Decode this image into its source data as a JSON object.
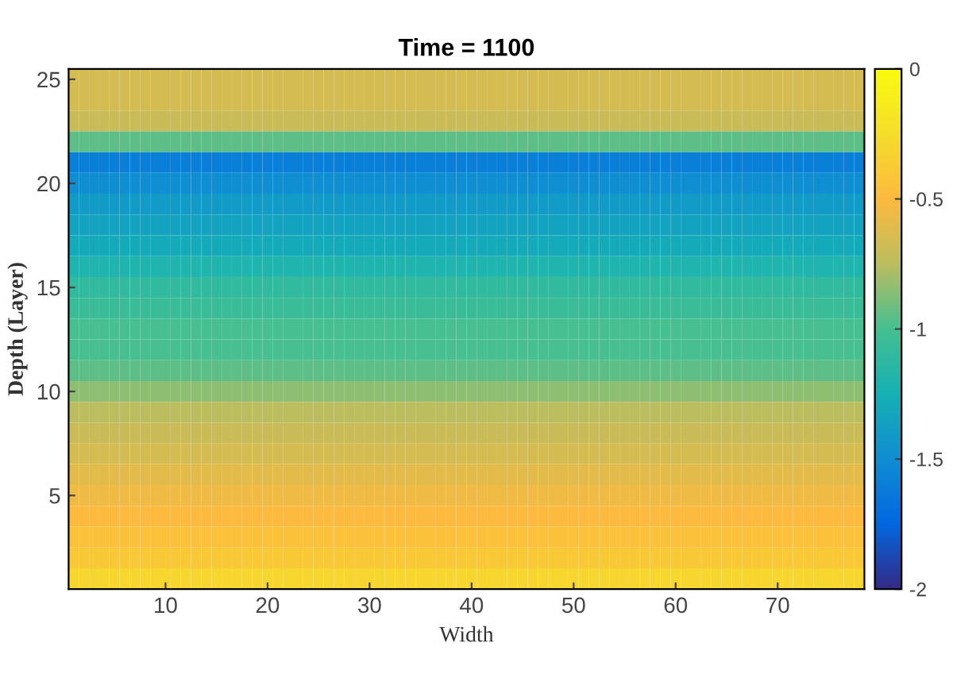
{
  "chart_data": {
    "type": "heatmap",
    "title": "Time = 1100",
    "xlabel": "Width",
    "ylabel": "Depth (Layer)",
    "categories": [
      null,
      null,
      null,
      null,
      null,
      null,
      null,
      null,
      null,
      "10",
      null,
      null,
      null,
      null,
      null,
      null,
      null,
      null,
      null,
      "20",
      null,
      null,
      null,
      null,
      null,
      null,
      null,
      null,
      null,
      "30",
      null,
      null,
      null,
      null,
      null,
      null,
      null,
      null,
      null,
      "40",
      null,
      null,
      null,
      null,
      null,
      null,
      null,
      null,
      null,
      "50",
      null,
      null,
      null,
      null,
      null,
      null,
      null,
      null,
      null,
      "60",
      null,
      null,
      null,
      null,
      null,
      null,
      null,
      null,
      null,
      "70",
      null,
      null,
      null,
      null,
      null,
      null,
      null,
      null
    ],
    "y_categories": [
      "25",
      null,
      null,
      null,
      null,
      "20",
      null,
      null,
      null,
      null,
      "15",
      null,
      null,
      null,
      null,
      "10",
      null,
      null,
      null,
      null,
      "5",
      null,
      null,
      null,
      null
    ],
    "clim": [
      -2,
      0
    ],
    "cticks": [
      -2,
      -1.5,
      -1,
      -0.5,
      0
    ],
    "cells": [
      [
        -0.65,
        -0.65,
        -0.65,
        -0.65,
        -0.65,
        -0.65,
        -0.65,
        -0.65,
        -0.65,
        -0.65,
        -0.65,
        -0.65,
        -0.65,
        -0.65,
        -0.65,
        -0.65,
        -0.65,
        -0.65,
        -0.65,
        -0.65,
        -0.65,
        -0.65,
        -0.65,
        -0.65,
        -0.65,
        -0.65,
        -0.65,
        -0.65,
        -0.65,
        -0.65,
        -0.65,
        -0.65,
        -0.65,
        -0.65,
        -0.65,
        -0.65,
        -0.65,
        -0.65,
        -0.65,
        -0.65,
        -0.65,
        -0.65,
        -0.65,
        -0.65,
        -0.65,
        -0.65,
        -0.65,
        -0.65,
        -0.65,
        -0.65,
        -0.65,
        -0.65,
        -0.65,
        -0.65,
        -0.65,
        -0.65,
        -0.65,
        -0.65,
        -0.65,
        -0.65,
        -0.65,
        -0.65,
        -0.65,
        -0.65,
        -0.65,
        -0.65,
        -0.65,
        -0.65,
        -0.65,
        -0.65,
        -0.65,
        -0.65,
        -0.65,
        -0.65,
        -0.65,
        -0.65,
        -0.65,
        -0.65
      ],
      [
        -0.65,
        -0.65,
        -0.65,
        -0.65,
        -0.65,
        -0.65,
        -0.65,
        -0.65,
        -0.65,
        -0.65,
        -0.65,
        -0.65,
        -0.65,
        -0.65,
        -0.65,
        -0.65,
        -0.65,
        -0.65,
        -0.65,
        -0.65,
        -0.65,
        -0.65,
        -0.65,
        -0.65,
        -0.65,
        -0.65,
        -0.65,
        -0.65,
        -0.65,
        -0.65,
        -0.65,
        -0.65,
        -0.65,
        -0.65,
        -0.65,
        -0.65,
        -0.65,
        -0.65,
        -0.65,
        -0.65,
        -0.65,
        -0.65,
        -0.65,
        -0.65,
        -0.65,
        -0.65,
        -0.65,
        -0.65,
        -0.65,
        -0.65,
        -0.65,
        -0.65,
        -0.65,
        -0.65,
        -0.65,
        -0.65,
        -0.65,
        -0.65,
        -0.65,
        -0.65,
        -0.65,
        -0.65,
        -0.65,
        -0.65,
        -0.65,
        -0.65,
        -0.65,
        -0.65,
        -0.65,
        -0.65,
        -0.65,
        -0.65,
        -0.65,
        -0.65,
        -0.65,
        -0.65,
        -0.65,
        -0.65
      ],
      [
        -0.7,
        -0.7,
        -0.7,
        -0.7,
        -0.7,
        -0.7,
        -0.7,
        -0.7,
        -0.7,
        -0.7,
        -0.7,
        -0.7,
        -0.7,
        -0.7,
        -0.7,
        -0.7,
        -0.7,
        -0.7,
        -0.7,
        -0.7,
        -0.7,
        -0.7,
        -0.7,
        -0.7,
        -0.7,
        -0.7,
        -0.7,
        -0.7,
        -0.7,
        -0.7,
        -0.7,
        -0.7,
        -0.7,
        -0.7,
        -0.7,
        -0.7,
        -0.7,
        -0.7,
        -0.7,
        -0.7,
        -0.7,
        -0.7,
        -0.7,
        -0.7,
        -0.7,
        -0.7,
        -0.7,
        -0.7,
        -0.7,
        -0.7,
        -0.7,
        -0.7,
        -0.7,
        -0.7,
        -0.7,
        -0.7,
        -0.7,
        -0.7,
        -0.7,
        -0.7,
        -0.7,
        -0.7,
        -0.7,
        -0.7,
        -0.7,
        -0.7,
        -0.7,
        -0.7,
        -0.7,
        -0.7,
        -0.7,
        -0.7,
        -0.7,
        -0.7,
        -0.7,
        -0.7,
        -0.7,
        -0.7
      ],
      [
        -0.95,
        -0.95,
        -0.95,
        -0.95,
        -0.95,
        -0.95,
        -0.95,
        -0.95,
        -0.95,
        -0.95,
        -0.95,
        -0.95,
        -0.95,
        -0.95,
        -0.95,
        -0.95,
        -0.95,
        -0.95,
        -0.95,
        -0.95,
        -0.95,
        -0.95,
        -0.95,
        -0.95,
        -0.95,
        -0.95,
        -0.95,
        -0.95,
        -0.95,
        -0.95,
        -0.95,
        -0.95,
        -0.95,
        -0.95,
        -0.95,
        -0.95,
        -0.95,
        -0.95,
        -0.95,
        -0.95,
        -0.95,
        -0.95,
        -0.95,
        -0.95,
        -0.95,
        -0.95,
        -0.95,
        -0.95,
        -0.95,
        -0.95,
        -0.95,
        -0.95,
        -0.95,
        -0.95,
        -0.95,
        -0.95,
        -0.95,
        -0.95,
        -0.95,
        -0.95,
        -0.95,
        -0.95,
        -0.95,
        -0.95,
        -0.95,
        -0.95,
        -0.95,
        -0.95,
        -0.95,
        -0.95,
        -0.95,
        -0.95,
        -0.95,
        -0.95,
        -0.95,
        -0.95,
        -0.95,
        -0.95
      ],
      [
        -1.6,
        -1.6,
        -1.6,
        -1.6,
        -1.6,
        -1.6,
        -1.6,
        -1.6,
        -1.6,
        -1.6,
        -1.6,
        -1.6,
        -1.6,
        -1.6,
        -1.6,
        -1.6,
        -1.6,
        -1.6,
        -1.6,
        -1.6,
        -1.6,
        -1.6,
        -1.6,
        -1.6,
        -1.6,
        -1.6,
        -1.6,
        -1.6,
        -1.6,
        -1.6,
        -1.6,
        -1.6,
        -1.6,
        -1.6,
        -1.6,
        -1.6,
        -1.6,
        -1.6,
        -1.6,
        -1.6,
        -1.6,
        -1.6,
        -1.6,
        -1.6,
        -1.6,
        -1.6,
        -1.6,
        -1.6,
        -1.6,
        -1.6,
        -1.6,
        -1.6,
        -1.6,
        -1.6,
        -1.6,
        -1.6,
        -1.6,
        -1.6,
        -1.6,
        -1.6,
        -1.6,
        -1.6,
        -1.6,
        -1.6,
        -1.6,
        -1.6,
        -1.6,
        -1.6,
        -1.6,
        -1.6,
        -1.6,
        -1.6,
        -1.6,
        -1.6,
        -1.6,
        -1.6,
        -1.6,
        -1.6
      ],
      [
        -1.5,
        -1.5,
        -1.5,
        -1.5,
        -1.5,
        -1.5,
        -1.5,
        -1.5,
        -1.5,
        -1.5,
        -1.5,
        -1.5,
        -1.5,
        -1.5,
        -1.5,
        -1.5,
        -1.5,
        -1.5,
        -1.5,
        -1.5,
        -1.5,
        -1.5,
        -1.5,
        -1.5,
        -1.5,
        -1.5,
        -1.5,
        -1.5,
        -1.5,
        -1.5,
        -1.5,
        -1.5,
        -1.5,
        -1.5,
        -1.5,
        -1.5,
        -1.5,
        -1.5,
        -1.5,
        -1.5,
        -1.5,
        -1.5,
        -1.5,
        -1.5,
        -1.5,
        -1.5,
        -1.5,
        -1.5,
        -1.5,
        -1.5,
        -1.5,
        -1.5,
        -1.5,
        -1.5,
        -1.5,
        -1.5,
        -1.5,
        -1.5,
        -1.5,
        -1.5,
        -1.5,
        -1.5,
        -1.5,
        -1.5,
        -1.5,
        -1.5,
        -1.5,
        -1.5,
        -1.5,
        -1.5,
        -1.5,
        -1.5,
        -1.5,
        -1.5,
        -1.5,
        -1.5,
        -1.5,
        -1.5
      ],
      [
        -1.4,
        -1.4,
        -1.4,
        -1.4,
        -1.4,
        -1.4,
        -1.4,
        -1.4,
        -1.4,
        -1.4,
        -1.4,
        -1.4,
        -1.4,
        -1.4,
        -1.4,
        -1.4,
        -1.4,
        -1.4,
        -1.4,
        -1.4,
        -1.4,
        -1.4,
        -1.4,
        -1.4,
        -1.4,
        -1.4,
        -1.4,
        -1.4,
        -1.4,
        -1.4,
        -1.4,
        -1.4,
        -1.4,
        -1.4,
        -1.4,
        -1.4,
        -1.4,
        -1.4,
        -1.4,
        -1.4,
        -1.4,
        -1.4,
        -1.4,
        -1.4,
        -1.4,
        -1.4,
        -1.4,
        -1.4,
        -1.4,
        -1.4,
        -1.4,
        -1.4,
        -1.4,
        -1.4,
        -1.4,
        -1.4,
        -1.4,
        -1.4,
        -1.4,
        -1.4,
        -1.4,
        -1.4,
        -1.4,
        -1.4,
        -1.4,
        -1.4,
        -1.4,
        -1.4,
        -1.4,
        -1.4,
        -1.4,
        -1.4,
        -1.4,
        -1.4,
        -1.4,
        -1.4,
        -1.4,
        -1.4
      ],
      [
        -1.35,
        -1.35,
        -1.35,
        -1.35,
        -1.35,
        -1.35,
        -1.35,
        -1.35,
        -1.35,
        -1.35,
        -1.35,
        -1.35,
        -1.35,
        -1.35,
        -1.35,
        -1.35,
        -1.35,
        -1.35,
        -1.35,
        -1.35,
        -1.35,
        -1.35,
        -1.35,
        -1.35,
        -1.35,
        -1.35,
        -1.35,
        -1.35,
        -1.35,
        -1.35,
        -1.35,
        -1.35,
        -1.35,
        -1.35,
        -1.35,
        -1.35,
        -1.35,
        -1.35,
        -1.35,
        -1.35,
        -1.35,
        -1.35,
        -1.35,
        -1.35,
        -1.35,
        -1.35,
        -1.35,
        -1.35,
        -1.35,
        -1.35,
        -1.35,
        -1.35,
        -1.35,
        -1.35,
        -1.35,
        -1.35,
        -1.35,
        -1.35,
        -1.35,
        -1.35,
        -1.35,
        -1.35,
        -1.35,
        -1.35,
        -1.35,
        -1.35,
        -1.35,
        -1.35,
        -1.35,
        -1.35,
        -1.35,
        -1.35,
        -1.35,
        -1.35,
        -1.35,
        -1.35,
        -1.35,
        -1.35
      ],
      [
        -1.3,
        -1.3,
        -1.3,
        -1.3,
        -1.3,
        -1.3,
        -1.3,
        -1.3,
        -1.3,
        -1.3,
        -1.3,
        -1.3,
        -1.3,
        -1.3,
        -1.3,
        -1.3,
        -1.3,
        -1.3,
        -1.3,
        -1.3,
        -1.3,
        -1.3,
        -1.3,
        -1.3,
        -1.3,
        -1.3,
        -1.3,
        -1.3,
        -1.3,
        -1.3,
        -1.3,
        -1.3,
        -1.3,
        -1.3,
        -1.3,
        -1.3,
        -1.3,
        -1.3,
        -1.3,
        -1.3,
        -1.3,
        -1.3,
        -1.3,
        -1.3,
        -1.3,
        -1.3,
        -1.3,
        -1.3,
        -1.3,
        -1.3,
        -1.3,
        -1.3,
        -1.3,
        -1.3,
        -1.3,
        -1.3,
        -1.3,
        -1.3,
        -1.3,
        -1.3,
        -1.3,
        -1.3,
        -1.3,
        -1.3,
        -1.3,
        -1.3,
        -1.3,
        -1.3,
        -1.3,
        -1.3,
        -1.3,
        -1.3,
        -1.3,
        -1.3,
        -1.3,
        -1.3,
        -1.3,
        -1.3
      ],
      [
        -1.2,
        -1.2,
        -1.2,
        -1.2,
        -1.2,
        -1.2,
        -1.2,
        -1.2,
        -1.2,
        -1.2,
        -1.2,
        -1.2,
        -1.2,
        -1.2,
        -1.2,
        -1.2,
        -1.2,
        -1.2,
        -1.2,
        -1.2,
        -1.2,
        -1.2,
        -1.2,
        -1.2,
        -1.2,
        -1.2,
        -1.2,
        -1.2,
        -1.2,
        -1.2,
        -1.2,
        -1.2,
        -1.2,
        -1.2,
        -1.2,
        -1.2,
        -1.2,
        -1.2,
        -1.2,
        -1.2,
        -1.2,
        -1.2,
        -1.2,
        -1.2,
        -1.2,
        -1.2,
        -1.2,
        -1.2,
        -1.2,
        -1.2,
        -1.2,
        -1.2,
        -1.2,
        -1.2,
        -1.2,
        -1.2,
        -1.2,
        -1.2,
        -1.2,
        -1.2,
        -1.2,
        -1.2,
        -1.2,
        -1.2,
        -1.2,
        -1.2,
        -1.2,
        -1.2,
        -1.2,
        -1.2,
        -1.2,
        -1.2,
        -1.2,
        -1.2,
        -1.2,
        -1.2,
        -1.2,
        -1.2
      ],
      [
        -1.1,
        -1.1,
        -1.1,
        -1.1,
        -1.1,
        -1.1,
        -1.1,
        -1.1,
        -1.1,
        -1.1,
        -1.1,
        -1.1,
        -1.1,
        -1.1,
        -1.1,
        -1.1,
        -1.1,
        -1.1,
        -1.1,
        -1.1,
        -1.1,
        -1.1,
        -1.1,
        -1.1,
        -1.1,
        -1.1,
        -1.1,
        -1.1,
        -1.1,
        -1.1,
        -1.1,
        -1.1,
        -1.1,
        -1.1,
        -1.1,
        -1.1,
        -1.1,
        -1.1,
        -1.1,
        -1.1,
        -1.1,
        -1.1,
        -1.1,
        -1.1,
        -1.1,
        -1.1,
        -1.1,
        -1.1,
        -1.1,
        -1.1,
        -1.1,
        -1.1,
        -1.1,
        -1.1,
        -1.1,
        -1.1,
        -1.1,
        -1.1,
        -1.1,
        -1.1,
        -1.1,
        -1.1,
        -1.1,
        -1.1,
        -1.1,
        -1.1,
        -1.1,
        -1.1,
        -1.1,
        -1.1,
        -1.1,
        -1.1,
        -1.1,
        -1.1,
        -1.1,
        -1.1,
        -1.1,
        -1.1
      ],
      [
        -1.05,
        -1.05,
        -1.05,
        -1.05,
        -1.05,
        -1.05,
        -1.05,
        -1.05,
        -1.05,
        -1.05,
        -1.05,
        -1.05,
        -1.05,
        -1.05,
        -1.05,
        -1.05,
        -1.05,
        -1.05,
        -1.05,
        -1.05,
        -1.05,
        -1.05,
        -1.05,
        -1.05,
        -1.05,
        -1.05,
        -1.05,
        -1.05,
        -1.05,
        -1.05,
        -1.05,
        -1.05,
        -1.05,
        -1.05,
        -1.05,
        -1.05,
        -1.05,
        -1.05,
        -1.05,
        -1.05,
        -1.05,
        -1.05,
        -1.05,
        -1.05,
        -1.05,
        -1.05,
        -1.05,
        -1.05,
        -1.05,
        -1.05,
        -1.05,
        -1.05,
        -1.05,
        -1.05,
        -1.05,
        -1.05,
        -1.05,
        -1.05,
        -1.05,
        -1.05,
        -1.05,
        -1.05,
        -1.05,
        -1.05,
        -1.05,
        -1.05,
        -1.05,
        -1.05,
        -1.05,
        -1.05,
        -1.05,
        -1.05,
        -1.05,
        -1.05,
        -1.05,
        -1.05,
        -1.05,
        -1.05
      ],
      [
        -1.0,
        -1.0,
        -1.0,
        -1.0,
        -1.0,
        -1.0,
        -1.0,
        -1.0,
        -1.0,
        -1.0,
        -1.0,
        -1.0,
        -1.0,
        -1.0,
        -1.0,
        -1.0,
        -1.0,
        -1.0,
        -1.0,
        -1.0,
        -1.0,
        -1.0,
        -1.0,
        -1.0,
        -1.0,
        -1.0,
        -1.0,
        -1.0,
        -1.0,
        -1.0,
        -1.0,
        -1.0,
        -1.0,
        -1.0,
        -1.0,
        -1.0,
        -1.0,
        -1.0,
        -1.0,
        -1.0,
        -1.0,
        -1.0,
        -1.0,
        -1.0,
        -1.0,
        -1.0,
        -1.0,
        -1.0,
        -1.0,
        -1.0,
        -1.0,
        -1.0,
        -1.0,
        -1.0,
        -1.0,
        -1.0,
        -1.0,
        -1.0,
        -1.0,
        -1.0,
        -1.0,
        -1.0,
        -1.0,
        -1.0,
        -1.0,
        -1.0,
        -1.0,
        -1.0,
        -1.0,
        -1.0,
        -1.0,
        -1.0,
        -1.0,
        -1.0,
        -1.0,
        -1.0,
        -1.0,
        -1.0
      ],
      [
        -1.0,
        -1.0,
        -1.0,
        -1.0,
        -1.0,
        -1.0,
        -1.0,
        -1.0,
        -1.0,
        -1.0,
        -1.0,
        -1.0,
        -1.0,
        -1.0,
        -1.0,
        -1.0,
        -1.0,
        -1.0,
        -1.0,
        -1.0,
        -1.0,
        -1.0,
        -1.0,
        -1.0,
        -1.0,
        -1.0,
        -1.0,
        -1.0,
        -1.0,
        -1.0,
        -1.0,
        -1.0,
        -1.0,
        -1.0,
        -1.0,
        -1.0,
        -1.0,
        -1.0,
        -1.0,
        -1.0,
        -1.0,
        -1.0,
        -1.0,
        -1.0,
        -1.0,
        -1.0,
        -1.0,
        -1.0,
        -1.0,
        -1.0,
        -1.0,
        -1.0,
        -1.0,
        -1.0,
        -1.0,
        -1.0,
        -1.0,
        -1.0,
        -1.0,
        -1.0,
        -1.0,
        -1.0,
        -1.0,
        -1.0,
        -1.0,
        -1.0,
        -1.0,
        -1.0,
        -1.0,
        -1.0,
        -1.0,
        -1.0,
        -1.0,
        -1.0,
        -1.0,
        -1.0,
        -1.0,
        -1.0
      ],
      [
        -0.95,
        -0.95,
        -0.95,
        -0.95,
        -0.95,
        -0.95,
        -0.95,
        -0.95,
        -0.95,
        -0.95,
        -0.95,
        -0.95,
        -0.95,
        -0.95,
        -0.95,
        -0.95,
        -0.95,
        -0.95,
        -0.95,
        -0.95,
        -0.95,
        -0.95,
        -0.95,
        -0.95,
        -0.95,
        -0.95,
        -0.95,
        -0.95,
        -0.95,
        -0.95,
        -0.95,
        -0.95,
        -0.95,
        -0.95,
        -0.95,
        -0.95,
        -0.95,
        -0.95,
        -0.95,
        -0.95,
        -0.95,
        -0.95,
        -0.95,
        -0.95,
        -0.95,
        -0.95,
        -0.95,
        -0.95,
        -0.95,
        -0.95,
        -0.95,
        -0.95,
        -0.95,
        -0.95,
        -0.95,
        -0.95,
        -0.95,
        -0.95,
        -0.95,
        -0.95,
        -0.95,
        -0.95,
        -0.95,
        -0.95,
        -0.95,
        -0.95,
        -0.95,
        -0.95,
        -0.95,
        -0.95,
        -0.95,
        -0.95,
        -0.95,
        -0.95,
        -0.95,
        -0.95,
        -0.95,
        -0.95
      ],
      [
        -0.85,
        -0.85,
        -0.85,
        -0.85,
        -0.85,
        -0.85,
        -0.85,
        -0.85,
        -0.85,
        -0.85,
        -0.85,
        -0.85,
        -0.85,
        -0.85,
        -0.85,
        -0.85,
        -0.85,
        -0.85,
        -0.85,
        -0.85,
        -0.85,
        -0.85,
        -0.85,
        -0.85,
        -0.85,
        -0.85,
        -0.85,
        -0.85,
        -0.85,
        -0.85,
        -0.85,
        -0.85,
        -0.85,
        -0.85,
        -0.85,
        -0.85,
        -0.85,
        -0.85,
        -0.85,
        -0.85,
        -0.85,
        -0.85,
        -0.85,
        -0.85,
        -0.85,
        -0.85,
        -0.85,
        -0.85,
        -0.85,
        -0.85,
        -0.85,
        -0.85,
        -0.85,
        -0.85,
        -0.85,
        -0.85,
        -0.85,
        -0.85,
        -0.85,
        -0.85,
        -0.85,
        -0.85,
        -0.85,
        -0.85,
        -0.85,
        -0.85,
        -0.85,
        -0.85,
        -0.85,
        -0.85,
        -0.85,
        -0.85,
        -0.85,
        -0.85,
        -0.85,
        -0.85,
        -0.85,
        -0.85
      ],
      [
        -0.75,
        -0.75,
        -0.75,
        -0.75,
        -0.75,
        -0.75,
        -0.75,
        -0.75,
        -0.75,
        -0.75,
        -0.75,
        -0.75,
        -0.75,
        -0.75,
        -0.75,
        -0.75,
        -0.75,
        -0.75,
        -0.75,
        -0.75,
        -0.75,
        -0.75,
        -0.75,
        -0.75,
        -0.75,
        -0.75,
        -0.75,
        -0.75,
        -0.75,
        -0.75,
        -0.75,
        -0.75,
        -0.75,
        -0.75,
        -0.75,
        -0.75,
        -0.75,
        -0.75,
        -0.75,
        -0.75,
        -0.75,
        -0.75,
        -0.75,
        -0.75,
        -0.75,
        -0.75,
        -0.75,
        -0.75,
        -0.75,
        -0.75,
        -0.75,
        -0.75,
        -0.75,
        -0.75,
        -0.75,
        -0.75,
        -0.75,
        -0.75,
        -0.75,
        -0.75,
        -0.75,
        -0.75,
        -0.75,
        -0.75,
        -0.75,
        -0.75,
        -0.75,
        -0.75,
        -0.75,
        -0.75,
        -0.75,
        -0.75,
        -0.75,
        -0.75,
        -0.75,
        -0.75,
        -0.75,
        -0.75
      ],
      [
        -0.7,
        -0.7,
        -0.7,
        -0.7,
        -0.7,
        -0.7,
        -0.7,
        -0.7,
        -0.7,
        -0.7,
        -0.7,
        -0.7,
        -0.7,
        -0.7,
        -0.7,
        -0.7,
        -0.7,
        -0.7,
        -0.7,
        -0.7,
        -0.7,
        -0.7,
        -0.7,
        -0.7,
        -0.7,
        -0.7,
        -0.7,
        -0.7,
        -0.7,
        -0.7,
        -0.7,
        -0.7,
        -0.7,
        -0.7,
        -0.7,
        -0.7,
        -0.7,
        -0.7,
        -0.7,
        -0.7,
        -0.7,
        -0.7,
        -0.7,
        -0.7,
        -0.7,
        -0.7,
        -0.7,
        -0.7,
        -0.7,
        -0.7,
        -0.7,
        -0.7,
        -0.7,
        -0.7,
        -0.7,
        -0.7,
        -0.7,
        -0.7,
        -0.7,
        -0.7,
        -0.7,
        -0.7,
        -0.7,
        -0.7,
        -0.7,
        -0.7,
        -0.7,
        -0.7,
        -0.7,
        -0.7,
        -0.7,
        -0.7,
        -0.7,
        -0.7,
        -0.7,
        -0.7,
        -0.7,
        -0.7
      ],
      [
        -0.65,
        -0.65,
        -0.65,
        -0.65,
        -0.65,
        -0.65,
        -0.65,
        -0.65,
        -0.65,
        -0.65,
        -0.65,
        -0.65,
        -0.65,
        -0.65,
        -0.65,
        -0.65,
        -0.65,
        -0.65,
        -0.65,
        -0.65,
        -0.65,
        -0.65,
        -0.65,
        -0.65,
        -0.65,
        -0.65,
        -0.65,
        -0.65,
        -0.65,
        -0.65,
        -0.65,
        -0.65,
        -0.65,
        -0.65,
        -0.65,
        -0.65,
        -0.65,
        -0.65,
        -0.65,
        -0.65,
        -0.65,
        -0.65,
        -0.65,
        -0.65,
        -0.65,
        -0.65,
        -0.65,
        -0.65,
        -0.65,
        -0.65,
        -0.65,
        -0.65,
        -0.65,
        -0.65,
        -0.65,
        -0.65,
        -0.65,
        -0.65,
        -0.65,
        -0.65,
        -0.65,
        -0.65,
        -0.65,
        -0.65,
        -0.65,
        -0.65,
        -0.65,
        -0.65,
        -0.65,
        -0.65,
        -0.65,
        -0.65,
        -0.65,
        -0.65,
        -0.65,
        -0.65,
        -0.65,
        -0.65
      ],
      [
        -0.6,
        -0.6,
        -0.6,
        -0.6,
        -0.6,
        -0.6,
        -0.6,
        -0.6,
        -0.6,
        -0.6,
        -0.6,
        -0.6,
        -0.6,
        -0.6,
        -0.6,
        -0.6,
        -0.6,
        -0.6,
        -0.6,
        -0.6,
        -0.6,
        -0.6,
        -0.6,
        -0.6,
        -0.6,
        -0.6,
        -0.6,
        -0.6,
        -0.6,
        -0.6,
        -0.6,
        -0.6,
        -0.6,
        -0.6,
        -0.6,
        -0.6,
        -0.6,
        -0.6,
        -0.6,
        -0.6,
        -0.6,
        -0.6,
        -0.6,
        -0.6,
        -0.6,
        -0.6,
        -0.6,
        -0.6,
        -0.6,
        -0.6,
        -0.6,
        -0.6,
        -0.6,
        -0.6,
        -0.6,
        -0.6,
        -0.6,
        -0.6,
        -0.6,
        -0.6,
        -0.6,
        -0.6,
        -0.6,
        -0.6,
        -0.6,
        -0.6,
        -0.6,
        -0.6,
        -0.6,
        -0.6,
        -0.6,
        -0.6,
        -0.6,
        -0.6,
        -0.6,
        -0.6,
        -0.6,
        -0.6
      ],
      [
        -0.55,
        -0.55,
        -0.55,
        -0.55,
        -0.55,
        -0.55,
        -0.55,
        -0.55,
        -0.55,
        -0.55,
        -0.55,
        -0.55,
        -0.55,
        -0.55,
        -0.55,
        -0.55,
        -0.55,
        -0.55,
        -0.55,
        -0.55,
        -0.55,
        -0.55,
        -0.55,
        -0.55,
        -0.55,
        -0.55,
        -0.55,
        -0.55,
        -0.55,
        -0.55,
        -0.55,
        -0.55,
        -0.55,
        -0.55,
        -0.55,
        -0.55,
        -0.55,
        -0.55,
        -0.55,
        -0.55,
        -0.55,
        -0.55,
        -0.55,
        -0.55,
        -0.55,
        -0.55,
        -0.55,
        -0.55,
        -0.55,
        -0.55,
        -0.55,
        -0.55,
        -0.55,
        -0.55,
        -0.55,
        -0.55,
        -0.55,
        -0.55,
        -0.55,
        -0.55,
        -0.55,
        -0.55,
        -0.55,
        -0.55,
        -0.55,
        -0.55,
        -0.55,
        -0.55,
        -0.55,
        -0.55,
        -0.55,
        -0.55,
        -0.55,
        -0.55,
        -0.55,
        -0.55,
        -0.55,
        -0.55
      ],
      [
        -0.5,
        -0.5,
        -0.5,
        -0.5,
        -0.5,
        -0.5,
        -0.5,
        -0.5,
        -0.5,
        -0.5,
        -0.5,
        -0.5,
        -0.5,
        -0.5,
        -0.5,
        -0.5,
        -0.5,
        -0.5,
        -0.5,
        -0.5,
        -0.5,
        -0.5,
        -0.5,
        -0.5,
        -0.5,
        -0.5,
        -0.5,
        -0.5,
        -0.5,
        -0.5,
        -0.5,
        -0.5,
        -0.5,
        -0.5,
        -0.5,
        -0.5,
        -0.5,
        -0.5,
        -0.5,
        -0.5,
        -0.5,
        -0.5,
        -0.5,
        -0.5,
        -0.5,
        -0.5,
        -0.5,
        -0.5,
        -0.5,
        -0.5,
        -0.5,
        -0.5,
        -0.5,
        -0.5,
        -0.5,
        -0.5,
        -0.5,
        -0.5,
        -0.5,
        -0.5,
        -0.5,
        -0.5,
        -0.5,
        -0.5,
        -0.5,
        -0.5,
        -0.5,
        -0.5,
        -0.5,
        -0.5,
        -0.5,
        -0.5,
        -0.5,
        -0.5,
        -0.5,
        -0.5,
        -0.5,
        -0.5
      ],
      [
        -0.45,
        -0.45,
        -0.45,
        -0.45,
        -0.45,
        -0.45,
        -0.45,
        -0.45,
        -0.45,
        -0.45,
        -0.45,
        -0.45,
        -0.45,
        -0.45,
        -0.45,
        -0.45,
        -0.45,
        -0.45,
        -0.45,
        -0.45,
        -0.45,
        -0.45,
        -0.45,
        -0.45,
        -0.45,
        -0.45,
        -0.45,
        -0.45,
        -0.45,
        -0.45,
        -0.45,
        -0.45,
        -0.45,
        -0.45,
        -0.45,
        -0.45,
        -0.45,
        -0.45,
        -0.45,
        -0.45,
        -0.45,
        -0.45,
        -0.45,
        -0.45,
        -0.45,
        -0.45,
        -0.45,
        -0.45,
        -0.45,
        -0.45,
        -0.45,
        -0.45,
        -0.45,
        -0.45,
        -0.45,
        -0.45,
        -0.45,
        -0.45,
        -0.45,
        -0.45,
        -0.45,
        -0.45,
        -0.45,
        -0.45,
        -0.45,
        -0.45,
        -0.45,
        -0.45,
        -0.45,
        -0.45,
        -0.45,
        -0.45,
        -0.45,
        -0.45,
        -0.45,
        -0.45,
        -0.45,
        -0.45
      ],
      [
        -0.4,
        -0.4,
        -0.4,
        -0.4,
        -0.4,
        -0.4,
        -0.4,
        -0.4,
        -0.4,
        -0.4,
        -0.4,
        -0.4,
        -0.4,
        -0.4,
        -0.4,
        -0.4,
        -0.4,
        -0.4,
        -0.4,
        -0.4,
        -0.4,
        -0.4,
        -0.4,
        -0.4,
        -0.4,
        -0.4,
        -0.4,
        -0.4,
        -0.4,
        -0.4,
        -0.4,
        -0.4,
        -0.4,
        -0.4,
        -0.4,
        -0.4,
        -0.4,
        -0.4,
        -0.4,
        -0.4,
        -0.4,
        -0.4,
        -0.4,
        -0.4,
        -0.4,
        -0.4,
        -0.4,
        -0.4,
        -0.4,
        -0.4,
        -0.4,
        -0.4,
        -0.4,
        -0.4,
        -0.4,
        -0.4,
        -0.4,
        -0.4,
        -0.4,
        -0.4,
        -0.4,
        -0.4,
        -0.4,
        -0.4,
        -0.4,
        -0.4,
        -0.4,
        -0.4,
        -0.4,
        -0.4,
        -0.4,
        -0.4,
        -0.4,
        -0.4,
        -0.4,
        -0.4,
        -0.4,
        -0.4
      ],
      [
        -0.3,
        -0.3,
        -0.3,
        -0.3,
        -0.3,
        -0.3,
        -0.3,
        -0.3,
        -0.3,
        -0.3,
        -0.3,
        -0.3,
        -0.3,
        -0.3,
        -0.3,
        -0.3,
        -0.3,
        -0.3,
        -0.3,
        -0.3,
        -0.3,
        -0.3,
        -0.3,
        -0.3,
        -0.3,
        -0.3,
        -0.3,
        -0.3,
        -0.3,
        -0.3,
        -0.3,
        -0.3,
        -0.3,
        -0.3,
        -0.3,
        -0.3,
        -0.3,
        -0.3,
        -0.3,
        -0.3,
        -0.3,
        -0.3,
        -0.3,
        -0.3,
        -0.3,
        -0.3,
        -0.3,
        -0.3,
        -0.3,
        -0.3,
        -0.3,
        -0.3,
        -0.3,
        -0.3,
        -0.3,
        -0.3,
        -0.3,
        -0.3,
        -0.3,
        -0.3,
        -0.3,
        -0.3,
        -0.3,
        -0.3,
        -0.3,
        -0.3,
        -0.3,
        -0.3,
        -0.3,
        -0.3,
        -0.3,
        -0.3,
        -0.3,
        -0.3,
        -0.3,
        -0.3,
        -0.3,
        -0.3
      ]
    ]
  }
}
